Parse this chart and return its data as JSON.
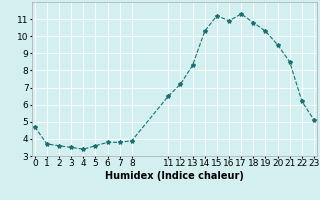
{
  "x": [
    0,
    1,
    2,
    3,
    4,
    5,
    6,
    7,
    8,
    11,
    12,
    13,
    14,
    15,
    16,
    17,
    18,
    19,
    20,
    21,
    22,
    23
  ],
  "y": [
    4.7,
    3.7,
    3.6,
    3.5,
    3.4,
    3.6,
    3.8,
    3.8,
    3.9,
    6.5,
    7.2,
    8.3,
    10.3,
    11.2,
    10.9,
    11.3,
    10.8,
    10.3,
    9.5,
    8.5,
    6.2,
    5.1
  ],
  "line_color": "#1a7070",
  "marker": "*",
  "marker_size": 3,
  "bg_color": "#d4efef",
  "grid_color": "#ffffff",
  "grid_color_minor": "#e8f8f8",
  "xlabel": "Humidex (Indice chaleur)",
  "xlabel_fontsize": 7,
  "tick_fontsize": 6.5,
  "ylim": [
    3,
    12
  ],
  "yticks": [
    3,
    4,
    5,
    6,
    7,
    8,
    9,
    10,
    11
  ],
  "xticks": [
    0,
    1,
    2,
    3,
    4,
    5,
    6,
    7,
    8,
    11,
    12,
    13,
    14,
    15,
    16,
    17,
    18,
    19,
    20,
    21,
    22,
    23
  ],
  "grid_lw": 0.6
}
